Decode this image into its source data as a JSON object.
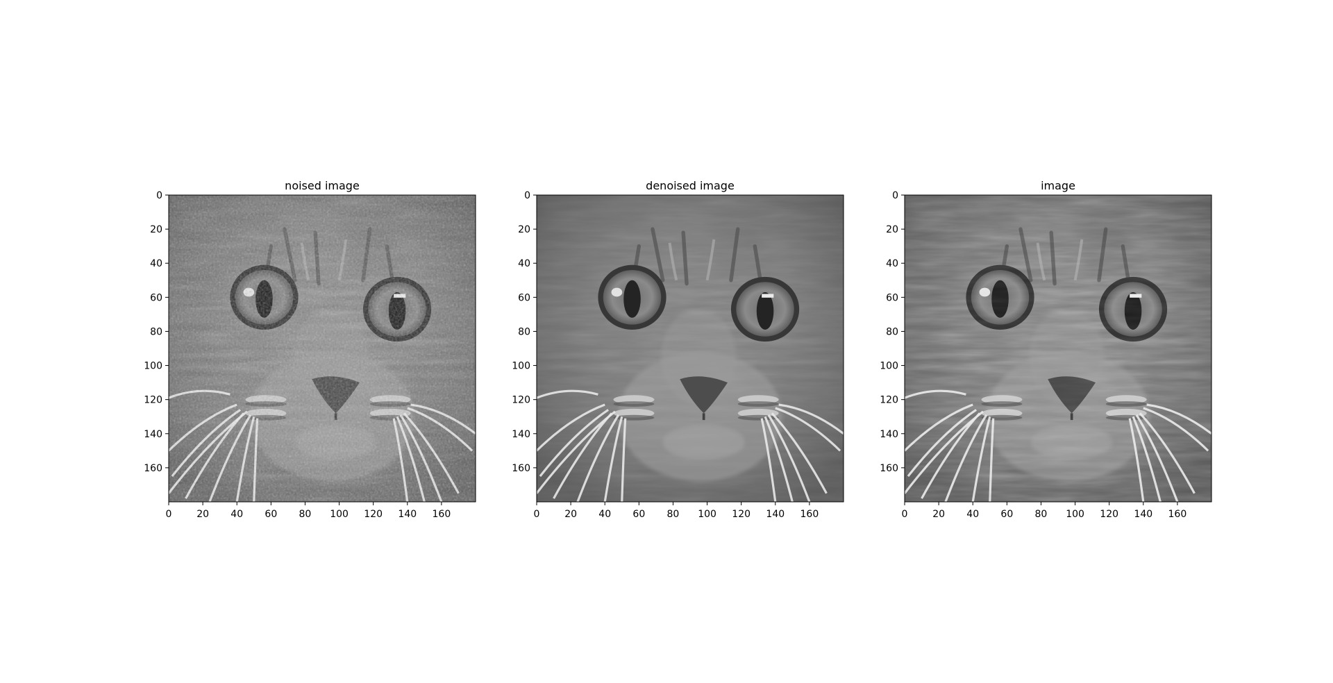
{
  "chart_data": [
    {
      "type": "heatmap",
      "title": "noised image",
      "colormap": "gray",
      "variant": "noised",
      "image_size": [
        180,
        180
      ],
      "xlim": [
        0,
        180
      ],
      "ylim": [
        180,
        0
      ],
      "xticks": [
        0,
        20,
        40,
        60,
        80,
        100,
        120,
        140,
        160
      ],
      "yticks": [
        0,
        20,
        40,
        60,
        80,
        100,
        120,
        140,
        160
      ],
      "tick_labels": [
        "0",
        "20",
        "40",
        "60",
        "80",
        "100",
        "120",
        "140",
        "160"
      ]
    },
    {
      "type": "heatmap",
      "title": "denoised image",
      "colormap": "gray",
      "variant": "denoised",
      "image_size": [
        180,
        180
      ],
      "xlim": [
        0,
        180
      ],
      "ylim": [
        180,
        0
      ],
      "xticks": [
        0,
        20,
        40,
        60,
        80,
        100,
        120,
        140,
        160
      ],
      "yticks": [
        0,
        20,
        40,
        60,
        80,
        100,
        120,
        140,
        160
      ],
      "tick_labels": [
        "0",
        "20",
        "40",
        "60",
        "80",
        "100",
        "120",
        "140",
        "160"
      ]
    },
    {
      "type": "heatmap",
      "title": "image",
      "colormap": "gray",
      "variant": "original",
      "image_size": [
        180,
        180
      ],
      "xlim": [
        0,
        180
      ],
      "ylim": [
        180,
        0
      ],
      "xticks": [
        0,
        20,
        40,
        60,
        80,
        100,
        120,
        140,
        160
      ],
      "yticks": [
        0,
        20,
        40,
        60,
        80,
        100,
        120,
        140,
        160
      ],
      "tick_labels": [
        "0",
        "20",
        "40",
        "60",
        "80",
        "100",
        "120",
        "140",
        "160"
      ]
    }
  ]
}
